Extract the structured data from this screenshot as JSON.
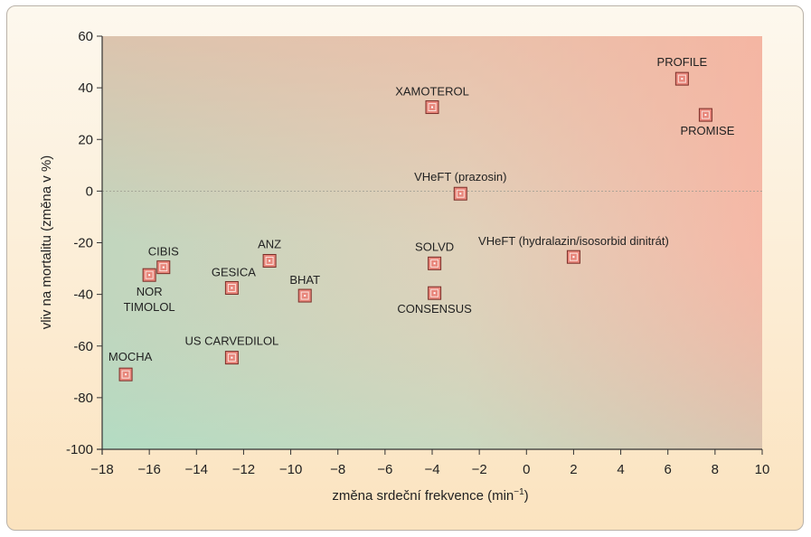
{
  "chart_data": {
    "type": "scatter",
    "xlabel": "změna srdeční frekvence (min",
    "xlabel_sup": "−1",
    "xlabel_end": ")",
    "ylabel": "vliv na mortalitu (změna v %)",
    "xlim": [
      -18,
      10
    ],
    "ylim": [
      -100,
      60
    ],
    "xticks": [
      -18,
      -16,
      -14,
      -12,
      -10,
      -8,
      -6,
      -4,
      -2,
      0,
      2,
      4,
      6,
      8,
      10
    ],
    "xtick_labels": [
      "−18",
      "−16",
      "−14",
      "−12",
      "−10",
      "−8",
      "−6",
      "−4",
      "−2",
      "0",
      "2",
      "4",
      "6",
      "8",
      "10"
    ],
    "yticks": [
      60,
      40,
      20,
      0,
      -20,
      -40,
      -60,
      -80,
      -100
    ],
    "ytick_labels": [
      "60",
      "40",
      "20",
      "0",
      "-20",
      "-40",
      "-60",
      "-80",
      "-100"
    ],
    "grid": false,
    "reference_line_y": 0,
    "background": "gradient green (bottom-left) to red (top-right)",
    "marker_color": "#e8877c",
    "points": [
      {
        "label": "MOCHA",
        "x": -17.0,
        "y": -71
      },
      {
        "label": "CIBIS",
        "x": -15.4,
        "y": -29.5
      },
      {
        "label": "NOR\nTIMOLOL",
        "x": -16.0,
        "y": -32.5
      },
      {
        "label": "GESICA",
        "x": -12.5,
        "y": -37.5
      },
      {
        "label": "ANZ",
        "x": -10.9,
        "y": -27
      },
      {
        "label": "BHAT",
        "x": -9.4,
        "y": -40.5
      },
      {
        "label": "US CARVEDILOL",
        "x": -12.5,
        "y": -64.5
      },
      {
        "label": "XAMOTEROL",
        "x": -4.0,
        "y": 32.5
      },
      {
        "label": "VHeFT (prazosin)",
        "x": -2.8,
        "y": -1
      },
      {
        "label": "SOLVD",
        "x": -3.9,
        "y": -28
      },
      {
        "label": "CONSENSUS",
        "x": -3.9,
        "y": -39.5
      },
      {
        "label": "VHeFT (hydralazin/isosorbid dinitrát)",
        "x": 2.0,
        "y": -25.5
      },
      {
        "label": "PROFILE",
        "x": 6.6,
        "y": 43.5
      },
      {
        "label": "PROMISE",
        "x": 7.6,
        "y": 29.5
      }
    ]
  }
}
